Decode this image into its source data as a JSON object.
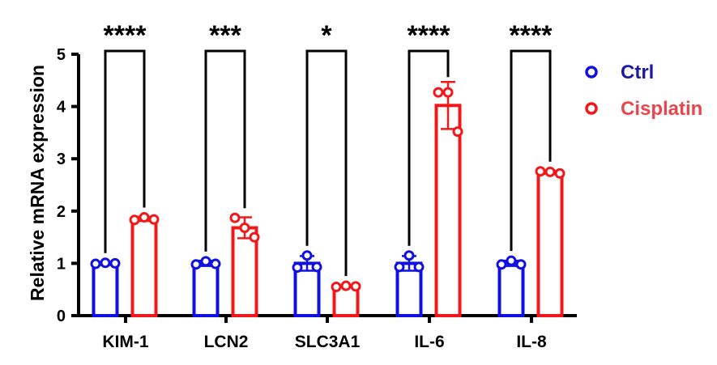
{
  "chart_data": {
    "type": "bar",
    "title": "",
    "xlabel": "",
    "ylabel": "Relative mRNA expression",
    "ylim": [
      0,
      5
    ],
    "yticks": [
      "0",
      "1",
      "2",
      "3",
      "4",
      "5"
    ],
    "categories": [
      "KIM-1",
      "LCN2",
      "SLC3A1",
      "IL-6",
      "IL-8"
    ],
    "significance": [
      "****",
      "***",
      "*",
      "****",
      "****"
    ],
    "series": [
      {
        "name": "Ctrl",
        "color": "#1010e0",
        "values": [
          1.0,
          1.0,
          1.0,
          1.0,
          1.0
        ],
        "errors": [
          0.03,
          0.05,
          0.14,
          0.14,
          0.05
        ],
        "points": [
          [
            0.99,
            1.01,
            1.0
          ],
          [
            0.98,
            1.04,
            0.99
          ],
          [
            0.92,
            1.15,
            0.93
          ],
          [
            0.93,
            1.15,
            0.93
          ],
          [
            0.98,
            1.05,
            0.98
          ]
        ]
      },
      {
        "name": "Cisplatin",
        "color": "#f01818",
        "values": [
          1.85,
          1.68,
          0.56,
          4.02,
          2.74
        ],
        "errors": [
          0.04,
          0.2,
          0.02,
          0.45,
          0.03
        ],
        "points": [
          [
            1.83,
            1.88,
            1.84
          ],
          [
            1.87,
            1.68,
            1.5
          ],
          [
            0.55,
            0.57,
            0.56
          ],
          [
            4.27,
            4.27,
            3.52
          ],
          [
            2.76,
            2.75,
            2.72
          ]
        ]
      }
    ],
    "legend_position": "right"
  }
}
